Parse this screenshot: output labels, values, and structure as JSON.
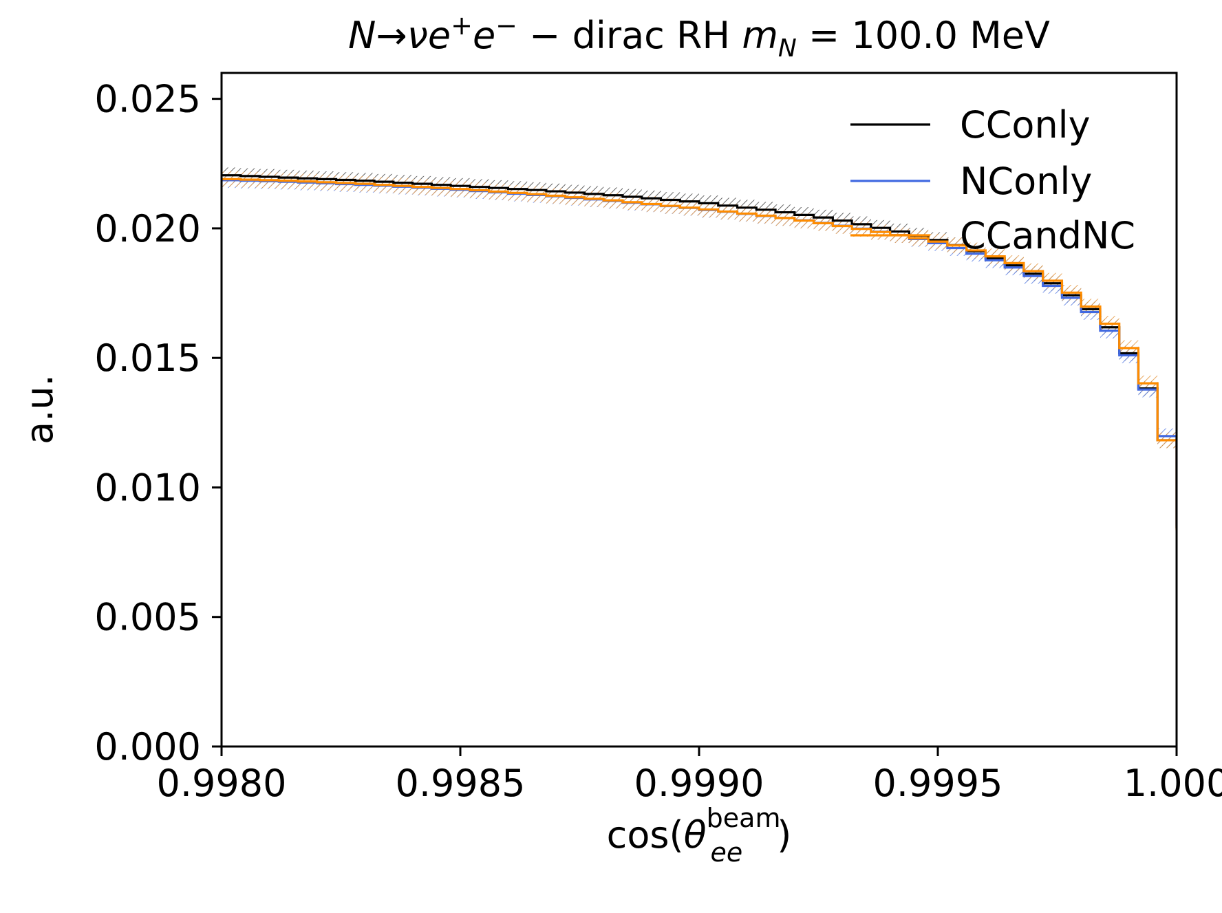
{
  "chart_data": {
    "type": "line",
    "title": {
      "prefix": "N",
      "arrow": "→",
      "nu": "ν",
      "e1": "e",
      "plus": "+",
      "e2": "e",
      "minus": "−",
      "middle": " − dirac RH ",
      "m": "m",
      "msub": "N",
      "suffix": " = 100.0 MeV"
    },
    "xlabel": {
      "pre": "cos(",
      "theta": "θ",
      "sub": "ee",
      "sup": "beam",
      "post": ")"
    },
    "ylabel": "a.u.",
    "xlim": [
      0.998,
      1.0
    ],
    "ylim": [
      0.0,
      0.026
    ],
    "x_ticks": [
      0.998,
      0.9985,
      0.999,
      0.9995,
      1.0
    ],
    "x_tick_labels": [
      "0.9980",
      "0.9985",
      "0.9990",
      "0.9995",
      "1.000"
    ],
    "y_ticks": [
      0.0,
      0.005,
      0.01,
      0.015,
      0.02,
      0.025
    ],
    "y_tick_labels": [
      "0.000",
      "0.005",
      "0.010",
      "0.015",
      "0.020",
      "0.025"
    ],
    "grid": false,
    "legend_placement": "top-right",
    "bin_edges": [
      0.998,
      0.99804,
      0.99808,
      0.99812,
      0.99816,
      0.9982,
      0.99824,
      0.99828,
      0.99832,
      0.99836,
      0.9984,
      0.99844,
      0.99848,
      0.99852,
      0.99856,
      0.9986,
      0.99864,
      0.99868,
      0.99872,
      0.99876,
      0.9988,
      0.99884,
      0.99888,
      0.99892,
      0.99896,
      0.999,
      0.99904,
      0.99908,
      0.99912,
      0.99916,
      0.9992,
      0.99924,
      0.99928,
      0.99932,
      0.99936,
      0.9994,
      0.99944,
      0.99948,
      0.99952,
      0.99956,
      0.9996,
      0.99964,
      0.99968,
      0.99972,
      0.99976,
      0.9998,
      0.99984,
      0.99988,
      0.99992,
      0.99996,
      1.0
    ],
    "series": [
      {
        "name": "CConly",
        "color": "#000000",
        "values": [
          0.02205,
          0.02202,
          0.02199,
          0.02196,
          0.02193,
          0.0219,
          0.02187,
          0.02184,
          0.0218,
          0.02176,
          0.02172,
          0.02168,
          0.02164,
          0.0216,
          0.02156,
          0.02152,
          0.02148,
          0.02143,
          0.02138,
          0.02133,
          0.02128,
          0.02122,
          0.02116,
          0.0211,
          0.02104,
          0.02097,
          0.02088,
          0.0208,
          0.02072,
          0.02062,
          0.02052,
          0.02042,
          0.0203,
          0.02016,
          0.02002,
          0.01988,
          0.01972,
          0.01955,
          0.01935,
          0.01912,
          0.01885,
          0.01857,
          0.01825,
          0.01788,
          0.01742,
          0.01688,
          0.01618,
          0.01518,
          0.01382,
          0.01182,
          0.00842
        ],
        "err": 0.0003
      },
      {
        "name": "NConly",
        "color": "#4169e1",
        "values": [
          0.02186,
          0.02184,
          0.02182,
          0.0218,
          0.02177,
          0.02174,
          0.02171,
          0.02168,
          0.02165,
          0.02161,
          0.02157,
          0.02153,
          0.02149,
          0.02144,
          0.02139,
          0.02134,
          0.02129,
          0.02124,
          0.02118,
          0.02112,
          0.02106,
          0.02099,
          0.02093,
          0.02086,
          0.02079,
          0.02071,
          0.02064,
          0.02056,
          0.02048,
          0.0204,
          0.02031,
          0.02021,
          0.0201,
          0.01999,
          0.01987,
          0.01974,
          0.01959,
          0.01943,
          0.01924,
          0.01902,
          0.01877,
          0.01849,
          0.01816,
          0.01778,
          0.01732,
          0.01677,
          0.01605,
          0.0151,
          0.01378,
          0.01198,
          0.00852
        ],
        "err": 0.0003
      },
      {
        "name": "CCandNC",
        "color": "#ff8c00",
        "values": [
          0.0219,
          0.02188,
          0.02186,
          0.02184,
          0.02181,
          0.02178,
          0.02175,
          0.02172,
          0.02168,
          0.02164,
          0.0216,
          0.02156,
          0.02152,
          0.02147,
          0.02142,
          0.02137,
          0.02132,
          0.02126,
          0.0212,
          0.02114,
          0.02108,
          0.02101,
          0.02094,
          0.02087,
          0.0208,
          0.02073,
          0.02065,
          0.02057,
          0.02049,
          0.0204,
          0.0203,
          0.0202,
          0.02009,
          0.01998,
          0.01986,
          0.01974,
          0.01962,
          0.01949,
          0.01934,
          0.01915,
          0.01892,
          0.01866,
          0.01835,
          0.01798,
          0.01752,
          0.01698,
          0.01632,
          0.01538,
          0.01402,
          0.01182,
          0.00835
        ],
        "err": 0.0003
      }
    ]
  }
}
